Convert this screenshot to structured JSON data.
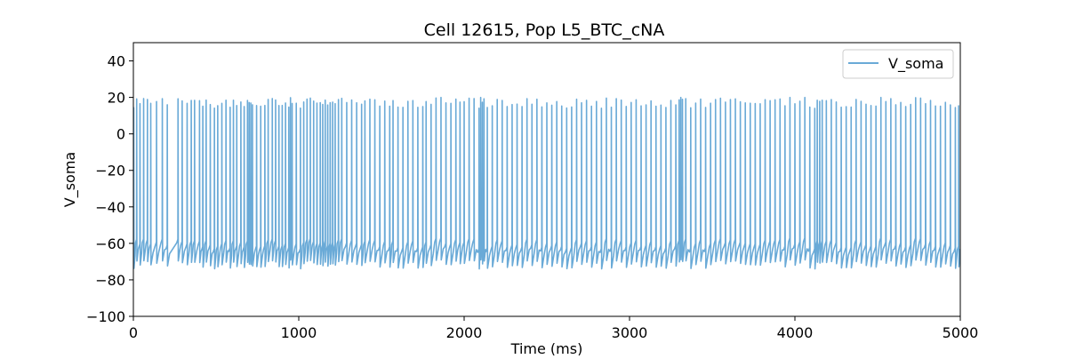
{
  "chart_data": {
    "type": "line",
    "title": "Cell 12615, Pop L5_BTC_cNA",
    "xlabel": "Time (ms)",
    "ylabel": "V_soma",
    "xlim": [
      0,
      5000
    ],
    "ylim": [
      -100,
      50
    ],
    "xticks": [
      0,
      1000,
      2000,
      3000,
      4000,
      5000
    ],
    "yticks": [
      -100,
      -80,
      -60,
      -40,
      -20,
      0,
      20,
      40
    ],
    "grid": false,
    "legend_position": "top-right",
    "series": [
      {
        "name": "V_soma",
        "color": "#6aaad7",
        "resting_potential_mV": -63,
        "peak_potential_mV": 17,
        "spike_times_ms": [
          2,
          20,
          40,
          62,
          85,
          105,
          140,
          175,
          205,
          270,
          295,
          325,
          350,
          370,
          400,
          420,
          440,
          465,
          490,
          510,
          535,
          560,
          585,
          605,
          625,
          650,
          670,
          690,
          700,
          710,
          720,
          745,
          770,
          795,
          815,
          840,
          860,
          880,
          900,
          920,
          940,
          950,
          960,
          985,
          1010,
          1030,
          1050,
          1070,
          1090,
          1110,
          1130,
          1145,
          1160,
          1175,
          1190,
          1205,
          1220,
          1240,
          1260,
          1290,
          1320,
          1350,
          1380,
          1400,
          1430,
          1460,
          1490,
          1520,
          1550,
          1570,
          1600,
          1630,
          1660,
          1690,
          1720,
          1750,
          1770,
          1800,
          1830,
          1860,
          1890,
          1920,
          1950,
          1975,
          2000,
          2030,
          2060,
          2090,
          2100,
          2110,
          2120,
          2140,
          2170,
          2200,
          2230,
          2260,
          2290,
          2320,
          2350,
          2380,
          2410,
          2440,
          2470,
          2500,
          2530,
          2560,
          2590,
          2620,
          2650,
          2680,
          2710,
          2740,
          2770,
          2800,
          2830,
          2860,
          2890,
          2920,
          2950,
          2980,
          3010,
          3040,
          3070,
          3100,
          3130,
          3160,
          3190,
          3220,
          3250,
          3280,
          3300,
          3310,
          3320,
          3340,
          3370,
          3400,
          3430,
          3460,
          3490,
          3520,
          3550,
          3580,
          3610,
          3640,
          3670,
          3700,
          3730,
          3760,
          3790,
          3820,
          3850,
          3880,
          3910,
          3940,
          3970,
          4000,
          4030,
          4060,
          4090,
          4120,
          4135,
          4150,
          4165,
          4190,
          4220,
          4250,
          4280,
          4310,
          4340,
          4370,
          4400,
          4430,
          4460,
          4490,
          4520,
          4550,
          4580,
          4610,
          4640,
          4670,
          4700,
          4730,
          4760,
          4790,
          4820,
          4850,
          4880,
          4910,
          4940,
          4970,
          4990
        ]
      }
    ]
  }
}
